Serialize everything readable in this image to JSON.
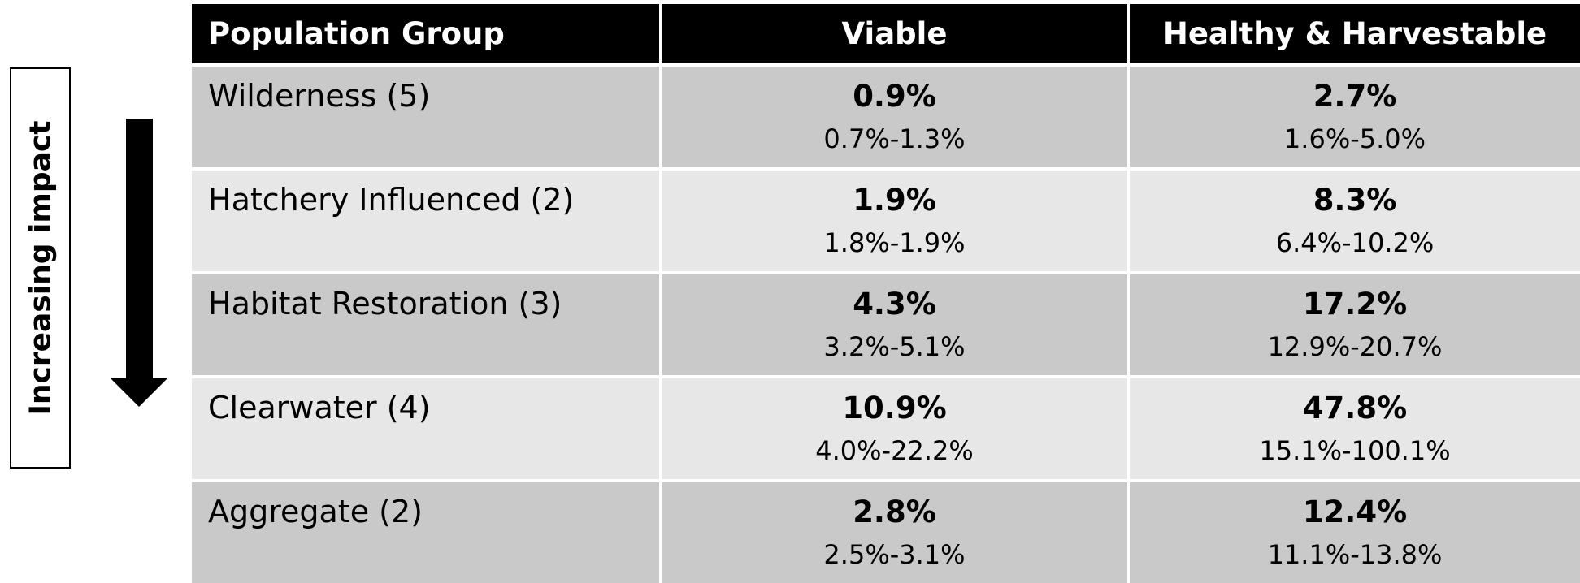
{
  "side_label": "Increasing impact",
  "table": {
    "header": [
      "Population Group",
      "Viable",
      "Healthy & Harvestable"
    ],
    "rows": [
      {
        "label": "Wilderness (5)",
        "cells": [
          {
            "estimate": "0.9%",
            "range": "0.7%-1.3%"
          },
          {
            "estimate": "2.7%",
            "range": "1.6%-5.0%"
          }
        ]
      },
      {
        "label": "Hatchery Influenced (2)",
        "cells": [
          {
            "estimate": "1.9%",
            "range": "1.8%-1.9%"
          },
          {
            "estimate": "8.3%",
            "range": "6.4%-10.2%"
          }
        ]
      },
      {
        "label": "Habitat Restoration (3)",
        "cells": [
          {
            "estimate": "4.3%",
            "range": "3.2%-5.1%"
          },
          {
            "estimate": "17.2%",
            "range": "12.9%-20.7%"
          }
        ]
      },
      {
        "label": "Clearwater (4)",
        "cells": [
          {
            "estimate": "10.9%",
            "range": "4.0%-22.2%"
          },
          {
            "estimate": "47.8%",
            "range": "15.1%-100.1%"
          }
        ]
      },
      {
        "label": "Aggregate (2)",
        "cells": [
          {
            "estimate": "2.8%",
            "range": "2.5%-3.1%"
          },
          {
            "estimate": "12.4%",
            "range": "11.1%-13.8%"
          }
        ]
      }
    ]
  }
}
